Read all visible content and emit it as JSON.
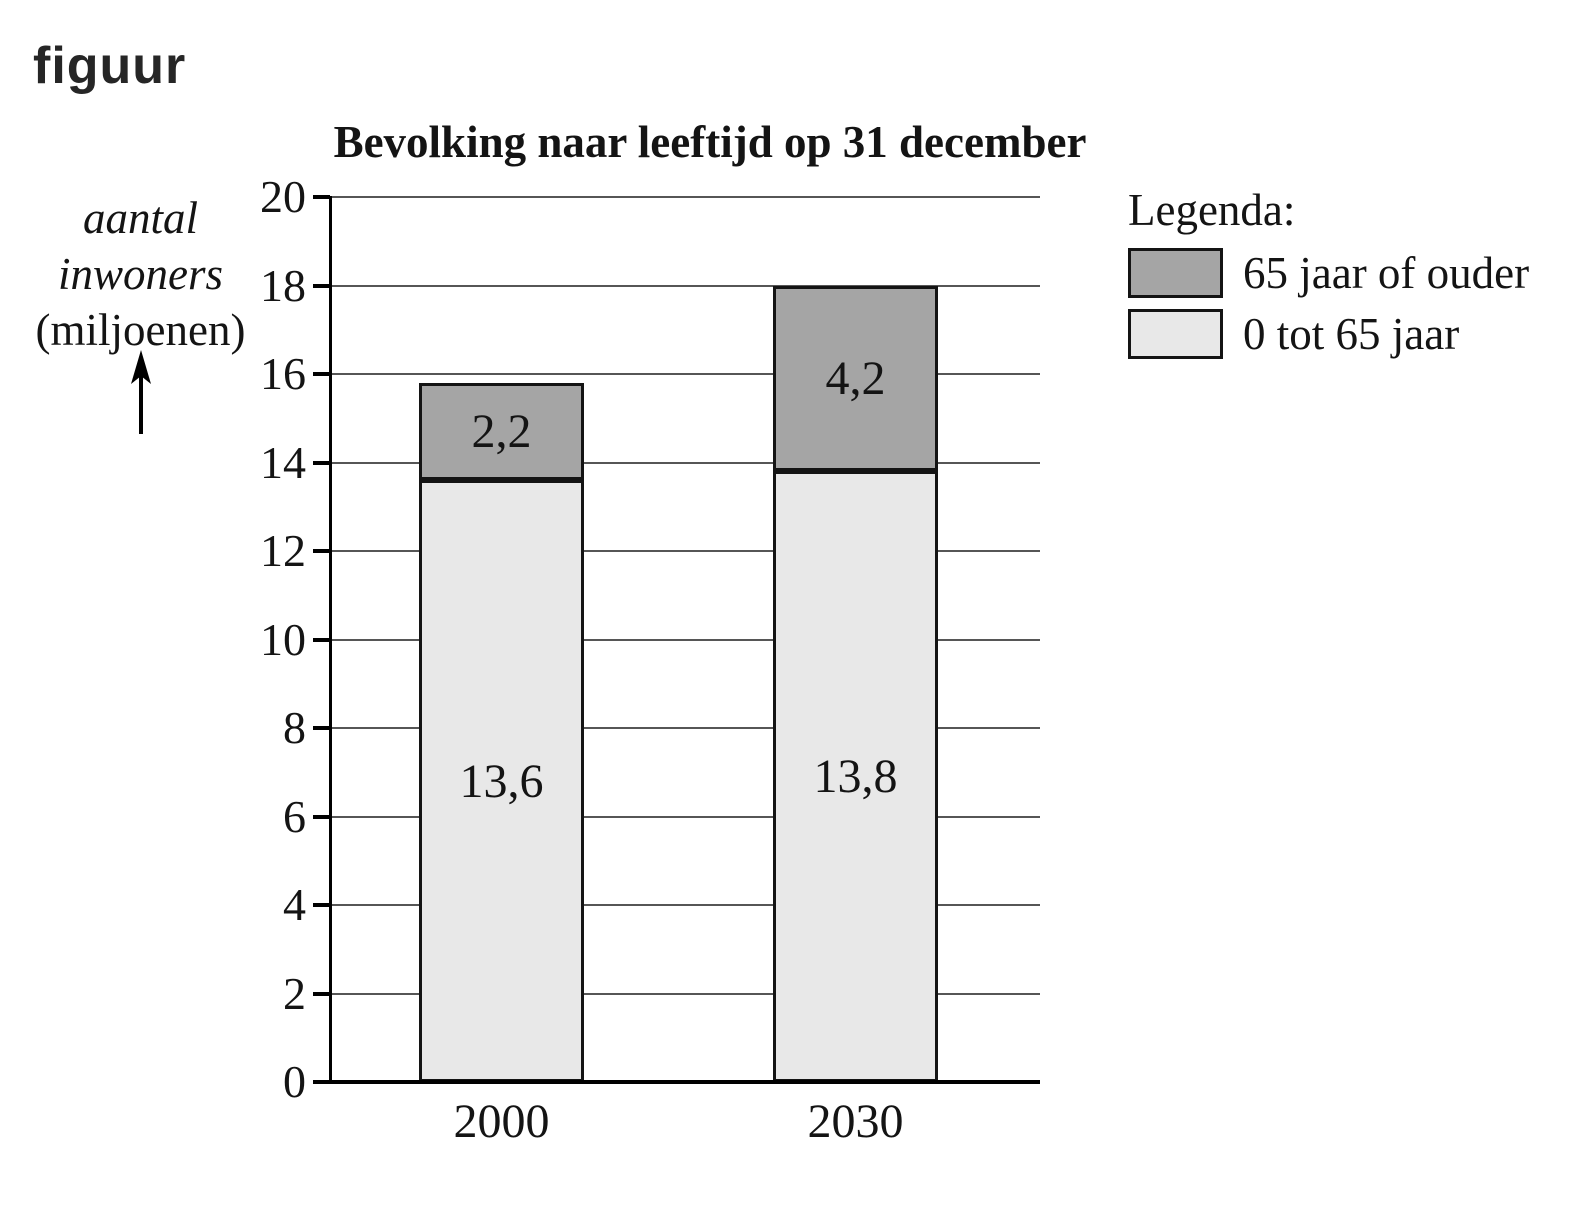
{
  "figure_label": "figuur",
  "chart_data": {
    "type": "bar",
    "stacked": true,
    "title": "Bevolking naar leeftijd op 31 december",
    "y_axis_title_lines": [
      "aantal",
      "inwoners",
      "(miljoenen)"
    ],
    "categories": [
      "2000",
      "2030"
    ],
    "series": [
      {
        "name": "0 tot 65 jaar",
        "color": "#e8e8e8",
        "values": [
          13.6,
          13.8
        ],
        "value_labels": [
          "13,6",
          "13,8"
        ]
      },
      {
        "name": "65 jaar of ouder",
        "color": "#a5a5a5",
        "values": [
          2.2,
          4.2
        ],
        "value_labels": [
          "2,2",
          "4,2"
        ]
      }
    ],
    "ylim": [
      0,
      20
    ],
    "ytick_step": 2,
    "ytick_labels": [
      "0",
      "2",
      "4",
      "6",
      "8",
      "10",
      "12",
      "14",
      "16",
      "18",
      "20"
    ],
    "grid": true,
    "legend": {
      "title": "Legenda:",
      "position": "right",
      "items": [
        {
          "label": "65 jaar of ouder",
          "color": "#a5a5a5"
        },
        {
          "label": "0 tot 65 jaar",
          "color": "#e8e8e8"
        }
      ]
    }
  }
}
